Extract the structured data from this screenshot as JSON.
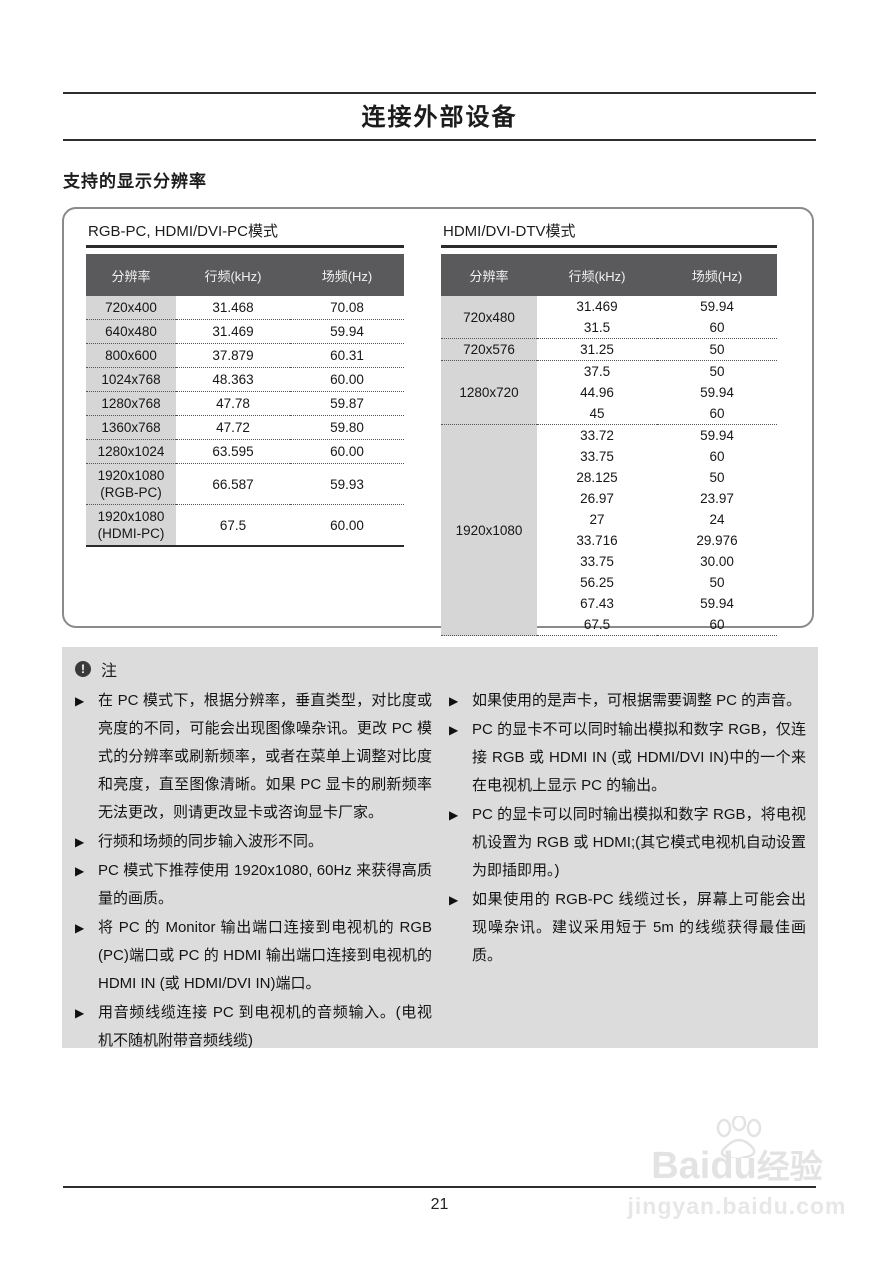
{
  "page": {
    "title": "连接外部设备",
    "section_title": "支持的显示分辨率",
    "page_number": "21"
  },
  "tables": [
    {
      "title": "RGB-PC, HDMI/DVI-PC模式",
      "headers": [
        "分辨率",
        "行频(kHz)",
        "场频(Hz)"
      ],
      "groups": [
        {
          "resolution_lines": [
            "720x400"
          ],
          "entries": [
            [
              "31.468",
              "70.08"
            ]
          ]
        },
        {
          "resolution_lines": [
            "640x480"
          ],
          "entries": [
            [
              "31.469",
              "59.94"
            ]
          ]
        },
        {
          "resolution_lines": [
            "800x600"
          ],
          "entries": [
            [
              "37.879",
              "60.31"
            ]
          ]
        },
        {
          "resolution_lines": [
            "1024x768"
          ],
          "entries": [
            [
              "48.363",
              "60.00"
            ]
          ]
        },
        {
          "resolution_lines": [
            "1280x768"
          ],
          "entries": [
            [
              "47.78",
              "59.87"
            ]
          ]
        },
        {
          "resolution_lines": [
            "1360x768"
          ],
          "entries": [
            [
              "47.72",
              "59.80"
            ]
          ]
        },
        {
          "resolution_lines": [
            "1280x1024"
          ],
          "entries": [
            [
              "63.595",
              "60.00"
            ]
          ]
        },
        {
          "resolution_lines": [
            "1920x1080",
            "(RGB-PC)"
          ],
          "entries": [
            [
              "66.587",
              "59.93"
            ]
          ]
        },
        {
          "resolution_lines": [
            "1920x1080",
            "(HDMI-PC)"
          ],
          "entries": [
            [
              "67.5",
              "60.00"
            ]
          ]
        }
      ]
    },
    {
      "title": "HDMI/DVI-DTV模式",
      "headers": [
        "分辨率",
        "行频(kHz)",
        "场频(Hz)"
      ],
      "groups": [
        {
          "resolution_lines": [
            "720x480"
          ],
          "entries": [
            [
              "31.469",
              "59.94"
            ],
            [
              "31.5",
              "60"
            ]
          ]
        },
        {
          "resolution_lines": [
            "720x576"
          ],
          "entries": [
            [
              "31.25",
              "50"
            ]
          ]
        },
        {
          "resolution_lines": [
            "1280x720"
          ],
          "entries": [
            [
              "37.5",
              "50"
            ],
            [
              "44.96",
              "59.94"
            ],
            [
              "45",
              "60"
            ]
          ]
        },
        {
          "resolution_lines": [
            "1920x1080"
          ],
          "entries": [
            [
              "33.72",
              "59.94"
            ],
            [
              "33.75",
              "60"
            ],
            [
              "28.125",
              "50"
            ],
            [
              "26.97",
              "23.97"
            ],
            [
              "27",
              "24"
            ],
            [
              "33.716",
              "29.976"
            ],
            [
              "33.75",
              "30.00"
            ],
            [
              "56.25",
              "50"
            ],
            [
              "67.43",
              "59.94"
            ],
            [
              "67.5",
              "60"
            ]
          ]
        }
      ]
    }
  ],
  "note": {
    "label": "注",
    "icon": "exclamation-circle-icon",
    "icon_glyph": "!",
    "bullet_glyph": "▶",
    "left_items": [
      "在 PC 模式下，根据分辨率，垂直类型，对比度或亮度的不同，可能会出现图像噪杂讯。更改 PC 模式的分辨率或刷新频率，或者在菜单上调整对比度和亮度，直至图像清晰。如果 PC 显卡的刷新频率无法更改，则请更改显卡或咨询显卡厂家。",
      "行频和场频的同步输入波形不同。",
      "PC 模式下推荐使用 1920x1080,  60Hz 来获得高质量的画质。",
      "将 PC 的 Monitor 输出端口连接到电视机的 RGB (PC)端口或 PC 的 HDMI 输出端口连接到电视机的 HDMI IN (或 HDMI/DVI IN)端口。",
      "用音频线缆连接 PC 到电视机的音频输入。(电视机不随机附带音频线缆)"
    ],
    "right_items": [
      "如果使用的是声卡，可根据需要调整 PC 的声音。",
      "PC 的显卡不可以同时输出模拟和数字 RGB，仅连接 RGB 或 HDMI IN (或 HDMI/DVI IN)中的一个来在电视机上显示 PC 的输出。",
      "PC 的显卡可以同时输出模拟和数字 RGB，将电视机设置为 RGB 或 HDMI;(其它模式电视机自动设置为即插即用。)",
      "如果使用的 RGB-PC 线缆过长，屏幕上可能会出现噪杂讯。建议采用短于 5m 的线缆获得最佳画质。"
    ]
  },
  "watermark": {
    "brand_prefix": "Bai",
    "brand_mid": "du",
    "brand_suffix": "经验",
    "url": "jingyan.baidu.com"
  },
  "colors": {
    "table_header_bg": "#5a5a5c",
    "table_header_text": "#f1f1f1",
    "resolution_col_bg": "#d6d6d6",
    "note_bg": "#dcdcdc",
    "rule": "#2e2e2e",
    "watermark": "#e3e3e3"
  }
}
